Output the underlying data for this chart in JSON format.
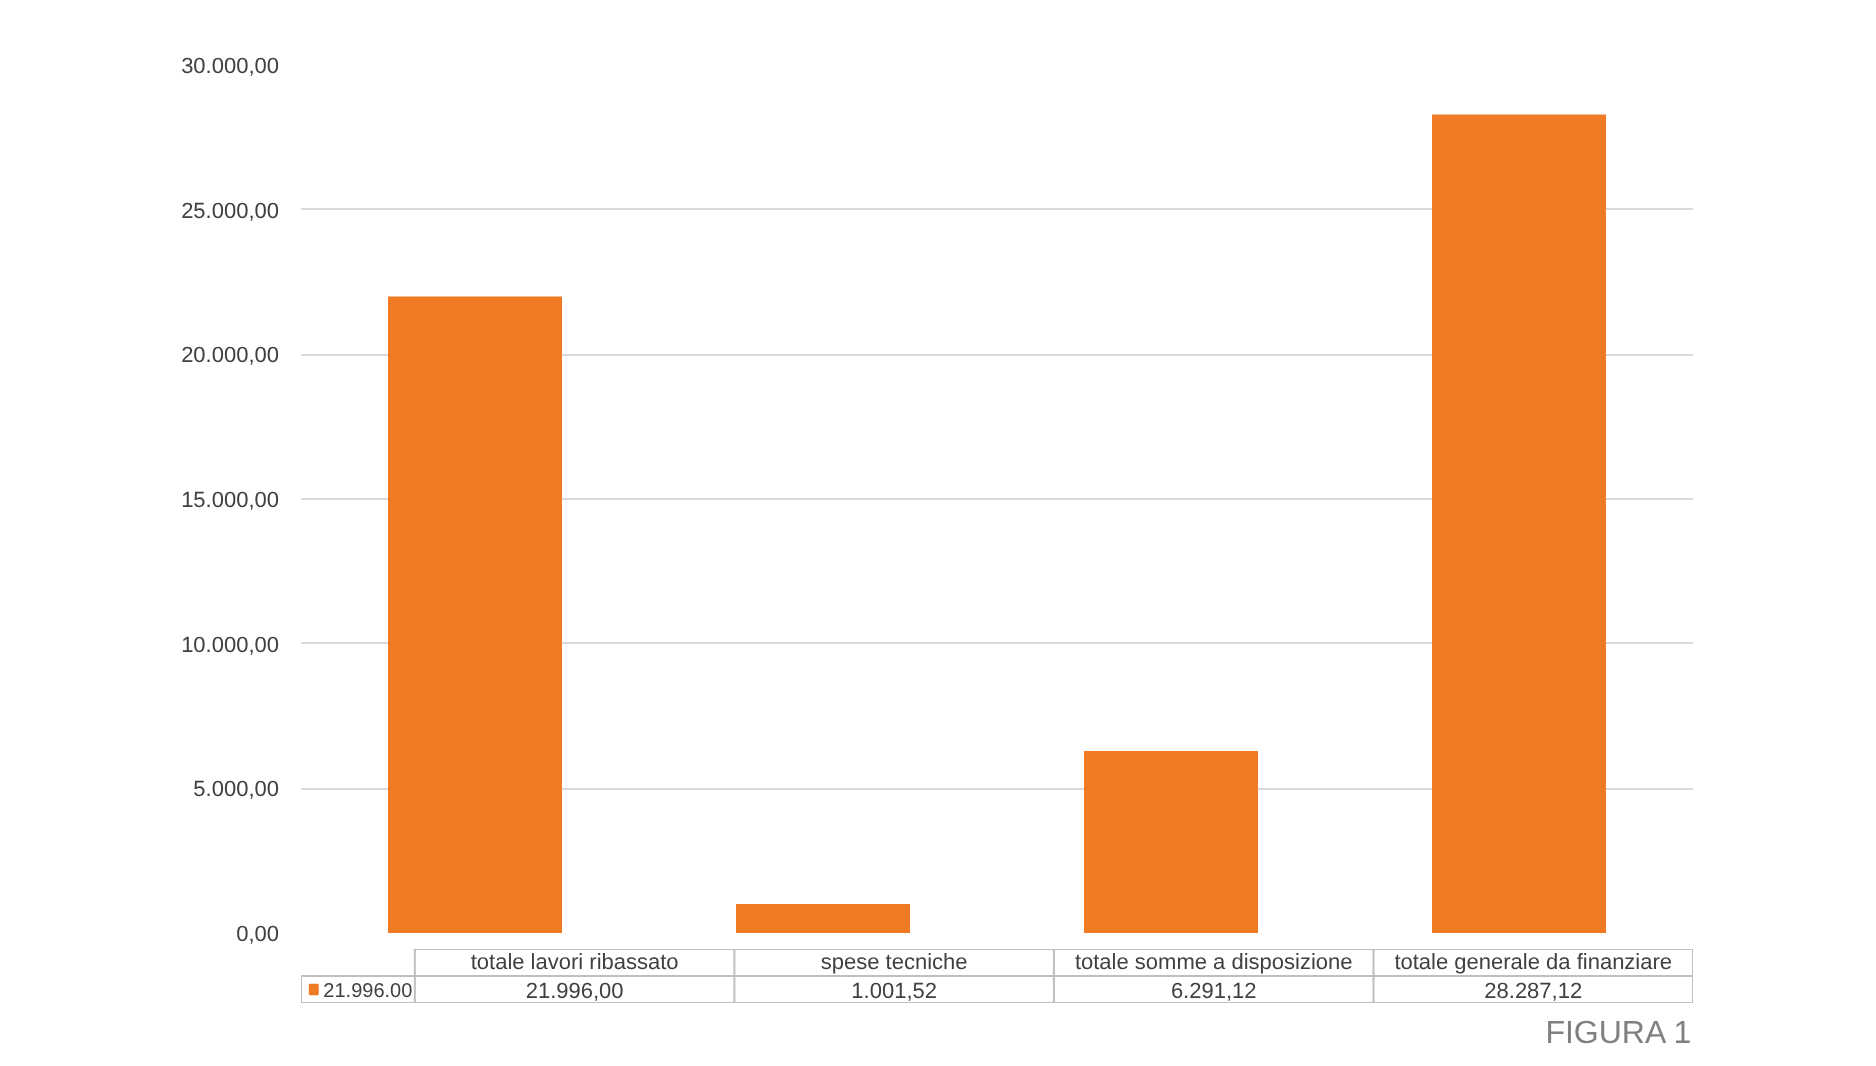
{
  "chart_data": {
    "type": "bar",
    "categories": [
      "totale lavori ribassato",
      "spese tecniche",
      "totale somme a disposizione",
      "totale generale da finanziare"
    ],
    "series": [
      {
        "name": "21.996.00",
        "color": "#f07b24",
        "values": [
          21996,
          1001.52,
          6291.12,
          28287.12
        ],
        "value_labels": [
          "21.996,00",
          "1.001,52",
          "6.291,12",
          "28.287,12"
        ]
      }
    ],
    "ylim": [
      0,
      30000
    ],
    "yticks": [
      {
        "value": 0,
        "label": "0,00"
      },
      {
        "value": 5000,
        "label": "5.000,00"
      },
      {
        "value": 10000,
        "label": "10.000,00"
      },
      {
        "value": 15000,
        "label": "15.000,00"
      },
      {
        "value": 20000,
        "label": "20.000,00"
      },
      {
        "value": 25000,
        "label": "25.000,00"
      },
      {
        "value": 30000,
        "label": "30.000,00"
      }
    ],
    "grid": "y",
    "legend": "bottom",
    "tick_labels": "y",
    "annotations": [
      "FIGURA 1"
    ]
  }
}
